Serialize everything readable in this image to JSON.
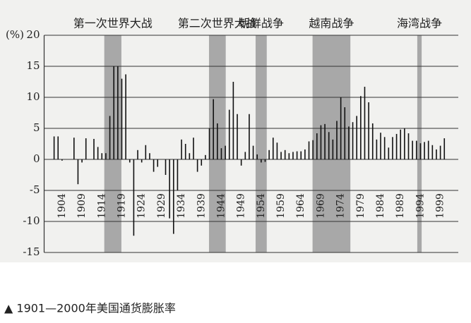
{
  "chart_data": {
    "type": "bar",
    "unit_label": "(%)",
    "caption": "▲ 1901—2000年美国通货膨胀率",
    "color": "#111111",
    "grid": true,
    "x": [
      1901,
      1902,
      1903,
      1904,
      1905,
      1906,
      1907,
      1908,
      1909,
      1910,
      1911,
      1912,
      1913,
      1914,
      1915,
      1916,
      1917,
      1918,
      1919,
      1920,
      1921,
      1922,
      1923,
      1924,
      1925,
      1926,
      1927,
      1928,
      1929,
      1930,
      1931,
      1932,
      1933,
      1934,
      1935,
      1936,
      1937,
      1938,
      1939,
      1940,
      1941,
      1942,
      1943,
      1944,
      1945,
      1946,
      1947,
      1948,
      1949,
      1950,
      1951,
      1952,
      1953,
      1954,
      1955,
      1956,
      1957,
      1958,
      1959,
      1960,
      1961,
      1962,
      1963,
      1964,
      1965,
      1966,
      1967,
      1968,
      1969,
      1970,
      1971,
      1972,
      1973,
      1974,
      1975,
      1976,
      1977,
      1978,
      1979,
      1980,
      1981,
      1982,
      1983,
      1984,
      1985,
      1986,
      1987,
      1988,
      1989,
      1990,
      1991,
      1992,
      1993,
      1994,
      1995,
      1996,
      1997,
      1998,
      1999,
      2000
    ],
    "values": [
      0,
      3.7,
      3.7,
      -0.2,
      0,
      0,
      3.5,
      -4.0,
      -0.5,
      3.4,
      0,
      3.3,
      2.0,
      1.0,
      1.0,
      7.0,
      15.0,
      15.0,
      13.0,
      13.7,
      -0.5,
      -12.3,
      1.5,
      -0.5,
      2.3,
      1.0,
      -2.0,
      -1.2,
      0,
      -2.5,
      -9.5,
      -12.0,
      -5.0,
      3.2,
      2.5,
      1.0,
      3.5,
      -2.0,
      -1.0,
      0.7,
      5.0,
      9.7,
      5.8,
      1.8,
      2.2,
      8.0,
      12.5,
      7.3,
      -1.0,
      1.2,
      7.3,
      2.2,
      0.8,
      -0.5,
      -0.4,
      1.5,
      3.5,
      2.7,
      1.2,
      1.5,
      1.0,
      1.2,
      1.3,
      1.3,
      1.6,
      2.9,
      3.1,
      4.2,
      5.5,
      5.7,
      4.4,
      3.2,
      6.2,
      10.0,
      8.4,
      5.3,
      6.0,
      7.0,
      10.2,
      11.7,
      9.2,
      5.8,
      3.2,
      4.3,
      3.6,
      1.9,
      3.6,
      4.1,
      4.8,
      5.0,
      4.2,
      3.0,
      3.0,
      2.6,
      2.8,
      3.0,
      2.3,
      1.6,
      2.2,
      3.4
    ],
    "xlim": [
      1899.5,
      2003.5
    ],
    "xticks": [
      1904,
      1909,
      1914,
      1919,
      1924,
      1929,
      1934,
      1939,
      1944,
      1949,
      1954,
      1959,
      1964,
      1969,
      1974,
      1979,
      1984,
      1989,
      1994,
      1999
    ],
    "ylim": [
      -15,
      20
    ],
    "yticks": [
      20,
      15,
      10,
      5,
      0,
      -5,
      -10,
      -15
    ],
    "periods": [
      {
        "label": "第一次世界大战",
        "span": [
          1914.6,
          1918.9
        ]
      },
      {
        "label": "第二次世界大战",
        "span": [
          1940.9,
          1945.1
        ]
      },
      {
        "label": "朝鲜战争",
        "span": [
          1952.6,
          1955.4
        ]
      },
      {
        "label": "越南战争",
        "span": [
          1966.9,
          1976.4
        ]
      },
      {
        "label": "海湾战争",
        "span": [
          1993.2,
          1994.3
        ]
      }
    ],
    "shade_color": "#a8a8a8"
  }
}
